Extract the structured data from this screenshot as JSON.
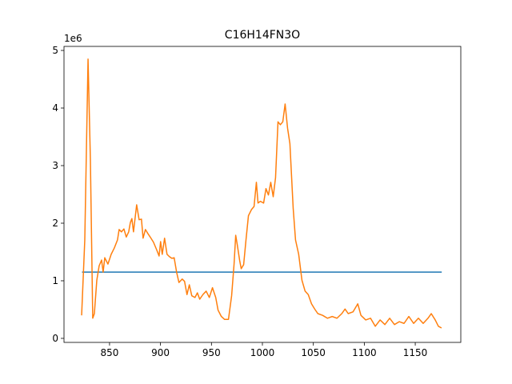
{
  "chart_data": {
    "type": "line",
    "title": "C16H14FN3O",
    "y_offset_label": "1e6",
    "xlim": [
      805.3,
      1194.7
    ],
    "xticks": [
      850,
      900,
      950,
      1000,
      1050,
      1100,
      1150
    ],
    "ylim": [
      -0.07,
      5.07
    ],
    "yticks": [
      0,
      1,
      2,
      3,
      4,
      5
    ],
    "series": [
      {
        "color": "#1f77b4",
        "x": [
          823,
          1176
        ],
        "values": [
          1.15,
          1.15
        ]
      },
      {
        "color": "#ff7f0e",
        "x": [
          822.6,
          825.7,
          828.9,
          831.2,
          833.5,
          835.1,
          837.5,
          839.8,
          842.2,
          843.7,
          845.3,
          848.4,
          851.6,
          854.7,
          857.8,
          859.4,
          861.7,
          864.1,
          866.4,
          868.8,
          870.4,
          871.9,
          873.5,
          876.6,
          879.0,
          881.3,
          882.9,
          885.2,
          887.6,
          889.9,
          893.1,
          896.2,
          898.6,
          900.1,
          901.7,
          904.0,
          906.4,
          908.7,
          911.1,
          913.4,
          915.8,
          918.1,
          921.3,
          923.6,
          926.0,
          928.3,
          930.7,
          933.8,
          936.2,
          938.5,
          941.6,
          944.8,
          947.9,
          951.0,
          954.2,
          956.5,
          959.7,
          962.8,
          966.7,
          969.8,
          972.2,
          973.8,
          975.3,
          977.7,
          979.2,
          981.6,
          983.9,
          986.3,
          989.4,
          991.8,
          994.1,
          995.7,
          998.0,
          1001.2,
          1003.5,
          1005.9,
          1008.2,
          1010.6,
          1012.9,
          1015.3,
          1017.6,
          1020.0,
          1022.3,
          1024.7,
          1027.0,
          1030.2,
          1032.5,
          1035.6,
          1038.8,
          1041.9,
          1045.0,
          1048.2,
          1051.3,
          1054.4,
          1059.1,
          1063.8,
          1068.5,
          1073.2,
          1077.9,
          1081.1,
          1084.2,
          1088.9,
          1093.6,
          1096.7,
          1101.4,
          1106.1,
          1110.8,
          1115.5,
          1120.2,
          1124.9,
          1129.6,
          1134.3,
          1139.0,
          1143.7,
          1148.4,
          1153.1,
          1157.8,
          1162.5,
          1165.7,
          1169.6,
          1172.7,
          1175.8
        ],
        "values": [
          0.4,
          1.71,
          4.85,
          3.1,
          0.35,
          0.43,
          1.01,
          1.26,
          1.36,
          1.15,
          1.4,
          1.29,
          1.46,
          1.57,
          1.71,
          1.89,
          1.85,
          1.9,
          1.76,
          1.85,
          2.01,
          2.08,
          1.85,
          2.32,
          2.06,
          2.07,
          1.74,
          1.89,
          1.82,
          1.76,
          1.67,
          1.54,
          1.43,
          1.68,
          1.46,
          1.74,
          1.46,
          1.42,
          1.39,
          1.4,
          1.15,
          0.97,
          1.03,
          0.99,
          0.76,
          0.93,
          0.74,
          0.71,
          0.79,
          0.68,
          0.76,
          0.82,
          0.71,
          0.88,
          0.71,
          0.49,
          0.38,
          0.33,
          0.33,
          0.74,
          1.29,
          1.79,
          1.63,
          1.35,
          1.21,
          1.28,
          1.71,
          2.13,
          2.24,
          2.29,
          2.71,
          2.35,
          2.38,
          2.35,
          2.6,
          2.49,
          2.71,
          2.46,
          2.79,
          3.76,
          3.71,
          3.76,
          4.07,
          3.65,
          3.38,
          2.26,
          1.71,
          1.46,
          1.01,
          0.82,
          0.76,
          0.6,
          0.51,
          0.43,
          0.4,
          0.35,
          0.38,
          0.35,
          0.43,
          0.51,
          0.43,
          0.46,
          0.6,
          0.4,
          0.32,
          0.35,
          0.21,
          0.32,
          0.24,
          0.35,
          0.24,
          0.29,
          0.26,
          0.38,
          0.26,
          0.35,
          0.26,
          0.35,
          0.43,
          0.32,
          0.21,
          0.18
        ]
      }
    ]
  }
}
